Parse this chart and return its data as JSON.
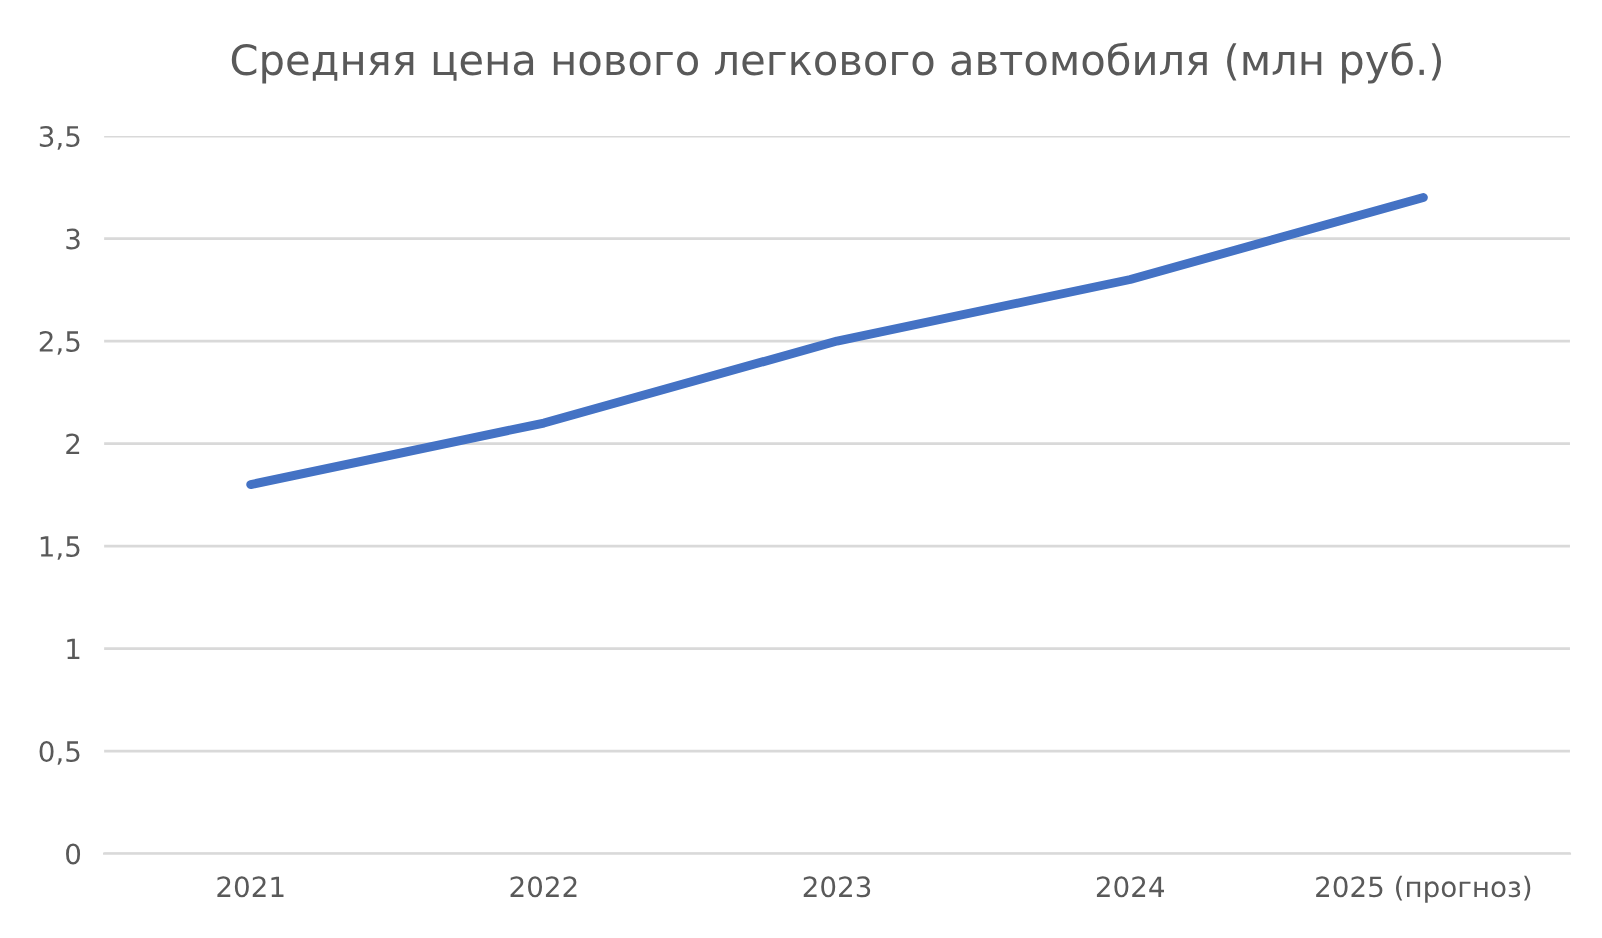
{
  "chart_data": {
    "type": "line",
    "title": "Средняя цена нового легкового автомобиля (млн руб.)",
    "categories": [
      "2021",
      "2022",
      "2023",
      "2024",
      "2025 (прогноз)"
    ],
    "series": [
      {
        "color": "#4472c4",
        "values": [
          1.8,
          2.1,
          2.5,
          2.8,
          3.2
        ]
      }
    ],
    "ylim": [
      0,
      3.5
    ],
    "yticks": [
      0,
      {
        "value": 0.5,
        "label": "0,5"
      },
      1,
      {
        "value": 1.5,
        "label": "1,5"
      },
      2,
      {
        "value": 2.5,
        "label": "2,5"
      },
      3,
      {
        "value": 3.5,
        "label": "3,5"
      }
    ],
    "grid": "y",
    "marker": "none",
    "line_style": "solid"
  }
}
